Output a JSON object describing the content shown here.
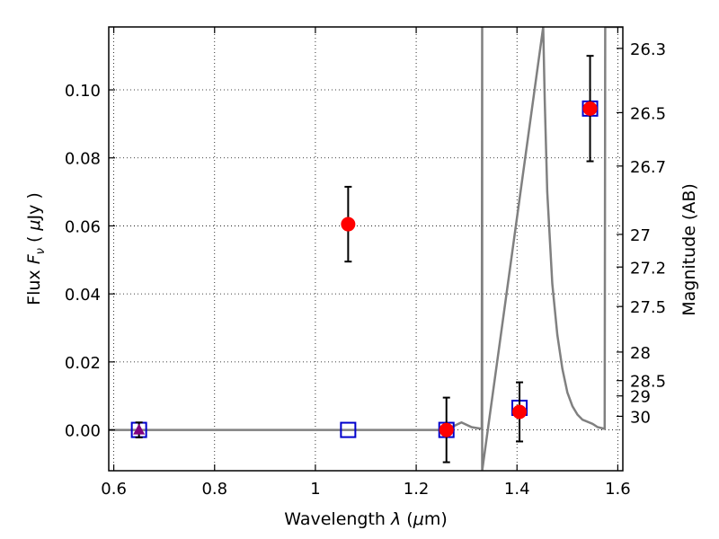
{
  "chart_data": {
    "type": "scatter",
    "title": "",
    "xlabel": "Wavelength  λ (μm)",
    "ylabel": "Flux  F_ν  ( μJy )",
    "y2label": "Magnitude (AB)",
    "xlim": [
      0.59,
      1.61
    ],
    "ylim": [
      -0.012,
      0.1185
    ],
    "grid": true,
    "x_ticks": [
      0.6,
      0.8,
      1.0,
      1.2,
      1.4,
      1.6
    ],
    "x_tick_labels": [
      "0.6",
      "0.8",
      "1",
      "1.2",
      "1.4",
      "1.6"
    ],
    "y_ticks": [
      0.0,
      0.02,
      0.04,
      0.06,
      0.08,
      0.1
    ],
    "y_tick_labels": [
      "0.00",
      "0.02",
      "0.04",
      "0.06",
      "0.08",
      "0.10"
    ],
    "y2_ticks": [
      {
        "label": "26.3",
        "flux": 0.1122
      },
      {
        "label": "26.5",
        "flux": 0.0933
      },
      {
        "label": "26.7",
        "flux": 0.0776
      },
      {
        "label": "27",
        "flux": 0.0575
      },
      {
        "label": "27.2",
        "flux": 0.0479
      },
      {
        "label": "27.5",
        "flux": 0.0363
      },
      {
        "label": "28",
        "flux": 0.0229
      },
      {
        "label": "28.5",
        "flux": 0.0145
      },
      {
        "label": "29",
        "flux": 0.01
      },
      {
        "label": "30",
        "flux": 0.004
      }
    ],
    "observed": {
      "color": "#ff0000",
      "points": [
        {
          "x": 1.065,
          "y": 0.0605,
          "err": 0.011
        },
        {
          "x": 1.26,
          "y": 0.0,
          "err": 0.0095
        },
        {
          "x": 1.405,
          "y": 0.0053,
          "err": 0.0087
        },
        {
          "x": 1.545,
          "y": 0.0945,
          "err": 0.0155
        }
      ]
    },
    "upper_limit": {
      "color": "#800080",
      "points": [
        {
          "x": 0.65,
          "y": 0.0,
          "err": 0.0022
        }
      ]
    },
    "model_photometry": {
      "color": "#0000cc",
      "points": [
        {
          "x": 0.65,
          "y": 0.0
        },
        {
          "x": 1.065,
          "y": 0.0
        },
        {
          "x": 1.26,
          "y": 0.0
        },
        {
          "x": 1.405,
          "y": 0.0065
        },
        {
          "x": 1.545,
          "y": 0.0945
        }
      ]
    },
    "model_spectrum": {
      "color": "#808080",
      "points": [
        [
          0.59,
          0.0
        ],
        [
          1.25,
          0.0
        ],
        [
          1.27,
          0.0008
        ],
        [
          1.29,
          0.0022
        ],
        [
          1.31,
          0.0008
        ],
        [
          1.33,
          0.0003
        ],
        [
          1.331,
          0.1185
        ],
        [
          1.331,
          -0.012
        ],
        [
          1.452,
          0.1185
        ],
        [
          1.455,
          0.097
        ],
        [
          1.46,
          0.07
        ],
        [
          1.47,
          0.043
        ],
        [
          1.48,
          0.028
        ],
        [
          1.49,
          0.018
        ],
        [
          1.5,
          0.011
        ],
        [
          1.51,
          0.007
        ],
        [
          1.52,
          0.0045
        ],
        [
          1.53,
          0.003
        ],
        [
          1.55,
          0.0018
        ],
        [
          1.56,
          0.0008
        ],
        [
          1.574,
          0.0003
        ],
        [
          1.575,
          0.1185
        ],
        [
          1.61,
          0.1185
        ]
      ]
    }
  }
}
